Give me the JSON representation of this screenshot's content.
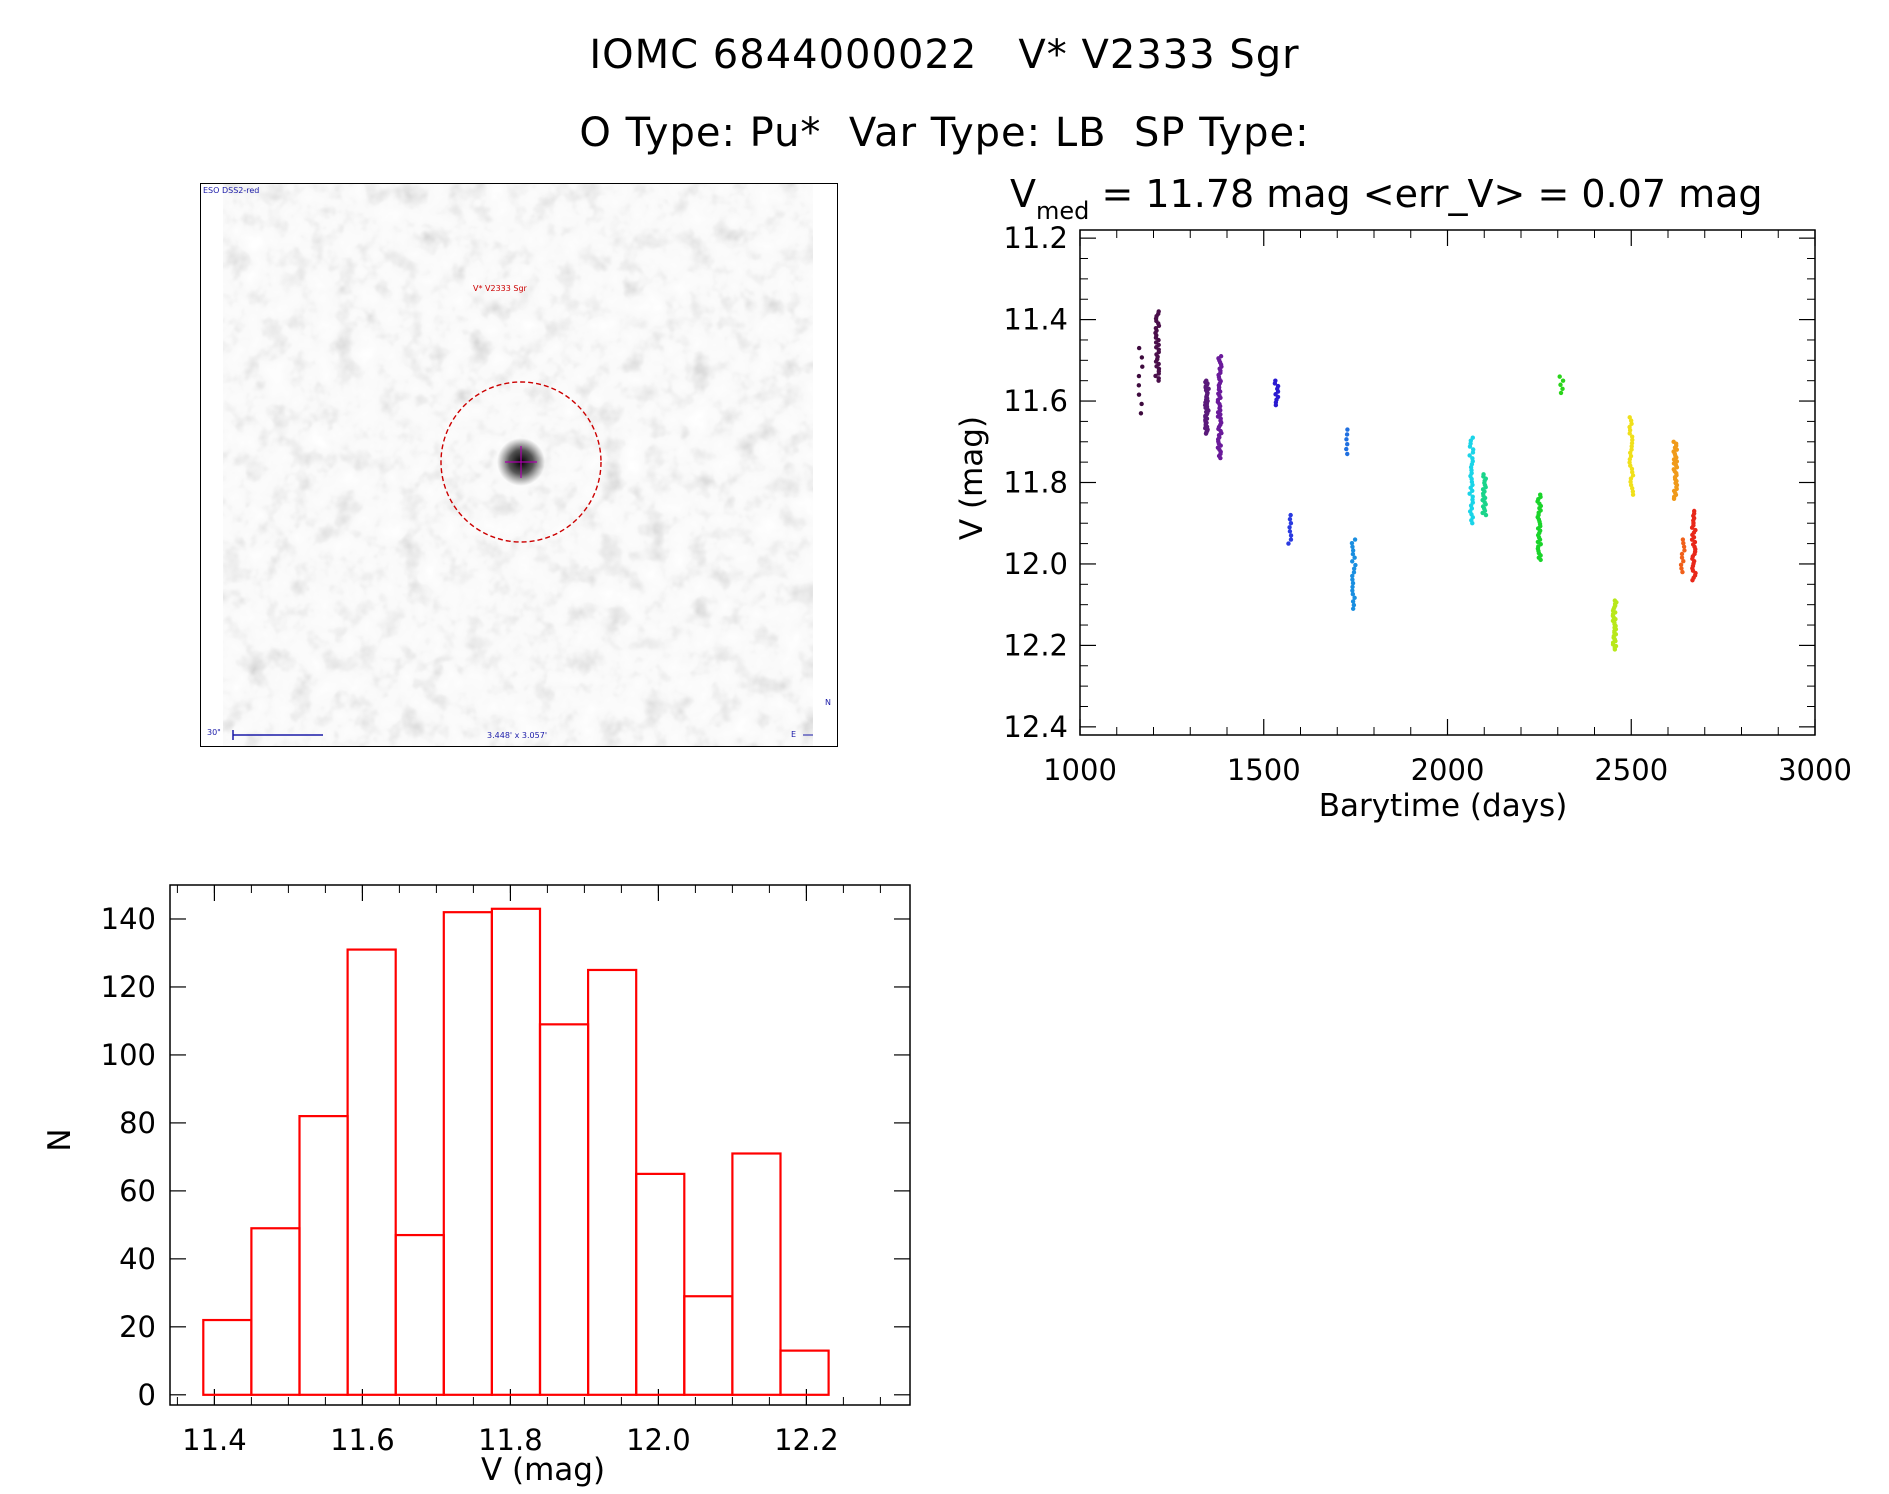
{
  "header": {
    "title_line1": "IOMC 6844000022   V* V2333 Sgr",
    "title_line2": "O Type: Pu*  Var Type: LB  SP Type:"
  },
  "finder_chart": {
    "survey_label": "ESO DSS2-red",
    "object_label": "V* V2333 Sgr",
    "scale_label": "30\"",
    "fov_label": "3.448' x 3.057'",
    "north_label": "N",
    "east_label": "E",
    "background_color": "#ffffff",
    "circle_color": "#cc0000",
    "cross_color": "#aa00aa"
  },
  "chart_data": [
    {
      "type": "scatter",
      "title_main": "V",
      "title_sub": "med",
      "title_rest": " = 11.78 mag <err_V> = 0.07 mag",
      "xlabel": "Barytime (days)",
      "ylabel": "V (mag)",
      "xlim": [
        1000,
        3000
      ],
      "ylim": [
        12.42,
        11.18
      ],
      "y_inverted": true,
      "xticks": [
        1000,
        1500,
        2000,
        2500,
        3000
      ],
      "yticks": [
        "11.2",
        "11.4",
        "11.6",
        "11.8",
        "12.0",
        "12.2",
        "12.4"
      ],
      "grid": false,
      "point_groups": [
        {
          "x": 1165,
          "ymin": 11.47,
          "ymax": 11.63,
          "n": 8,
          "color": "#3d0a3d"
        },
        {
          "x": 1210,
          "ymin": 11.38,
          "ymax": 11.55,
          "n": 30,
          "color": "#4a0f4a"
        },
        {
          "x": 1345,
          "ymin": 11.55,
          "ymax": 11.68,
          "n": 40,
          "color": "#5a1a7a"
        },
        {
          "x": 1380,
          "ymin": 11.49,
          "ymax": 11.74,
          "n": 50,
          "color": "#6a1a9a"
        },
        {
          "x": 1535,
          "ymin": 11.55,
          "ymax": 11.61,
          "n": 10,
          "color": "#2a1ad0"
        },
        {
          "x": 1570,
          "ymin": 11.88,
          "ymax": 11.95,
          "n": 8,
          "color": "#2a3ae0"
        },
        {
          "x": 1725,
          "ymin": 11.67,
          "ymax": 11.73,
          "n": 6,
          "color": "#1f6fe0"
        },
        {
          "x": 1745,
          "ymin": 11.94,
          "ymax": 12.11,
          "n": 20,
          "color": "#1a8ee0"
        },
        {
          "x": 2065,
          "ymin": 11.69,
          "ymax": 11.9,
          "n": 30,
          "color": "#1ad4e8"
        },
        {
          "x": 2100,
          "ymin": 11.78,
          "ymax": 11.88,
          "n": 20,
          "color": "#1ad48a"
        },
        {
          "x": 2250,
          "ymin": 11.83,
          "ymax": 11.99,
          "n": 30,
          "color": "#1ad42a"
        },
        {
          "x": 2310,
          "ymin": 11.54,
          "ymax": 11.58,
          "n": 5,
          "color": "#2ad41a"
        },
        {
          "x": 2455,
          "ymin": 12.09,
          "ymax": 12.21,
          "n": 30,
          "color": "#b8e81a"
        },
        {
          "x": 2500,
          "ymin": 11.64,
          "ymax": 11.83,
          "n": 25,
          "color": "#f0e01a"
        },
        {
          "x": 2620,
          "ymin": 11.7,
          "ymax": 11.84,
          "n": 30,
          "color": "#f09a1a"
        },
        {
          "x": 2640,
          "ymin": 11.94,
          "ymax": 12.02,
          "n": 10,
          "color": "#f0601a"
        },
        {
          "x": 2670,
          "ymin": 11.87,
          "ymax": 12.04,
          "n": 30,
          "color": "#e8281a"
        }
      ]
    },
    {
      "type": "bar",
      "xlabel": "V (mag)",
      "ylabel": "N",
      "xlim": [
        11.34,
        12.34
      ],
      "ylim": [
        -3,
        150
      ],
      "xticks": [
        "11.4",
        "11.6",
        "11.8",
        "12.0",
        "12.2"
      ],
      "yticks": [
        0,
        20,
        40,
        60,
        80,
        100,
        120,
        140
      ],
      "bin_edges": [
        11.385,
        11.45,
        11.515,
        11.58,
        11.645,
        11.71,
        11.775,
        11.84,
        11.905,
        11.97,
        12.035,
        12.1,
        12.165,
        12.23
      ],
      "values": [
        22,
        49,
        82,
        131,
        47,
        142,
        143,
        109,
        125,
        65,
        29,
        71,
        13
      ],
      "bar_color": "#ff0000",
      "grid": false
    }
  ]
}
